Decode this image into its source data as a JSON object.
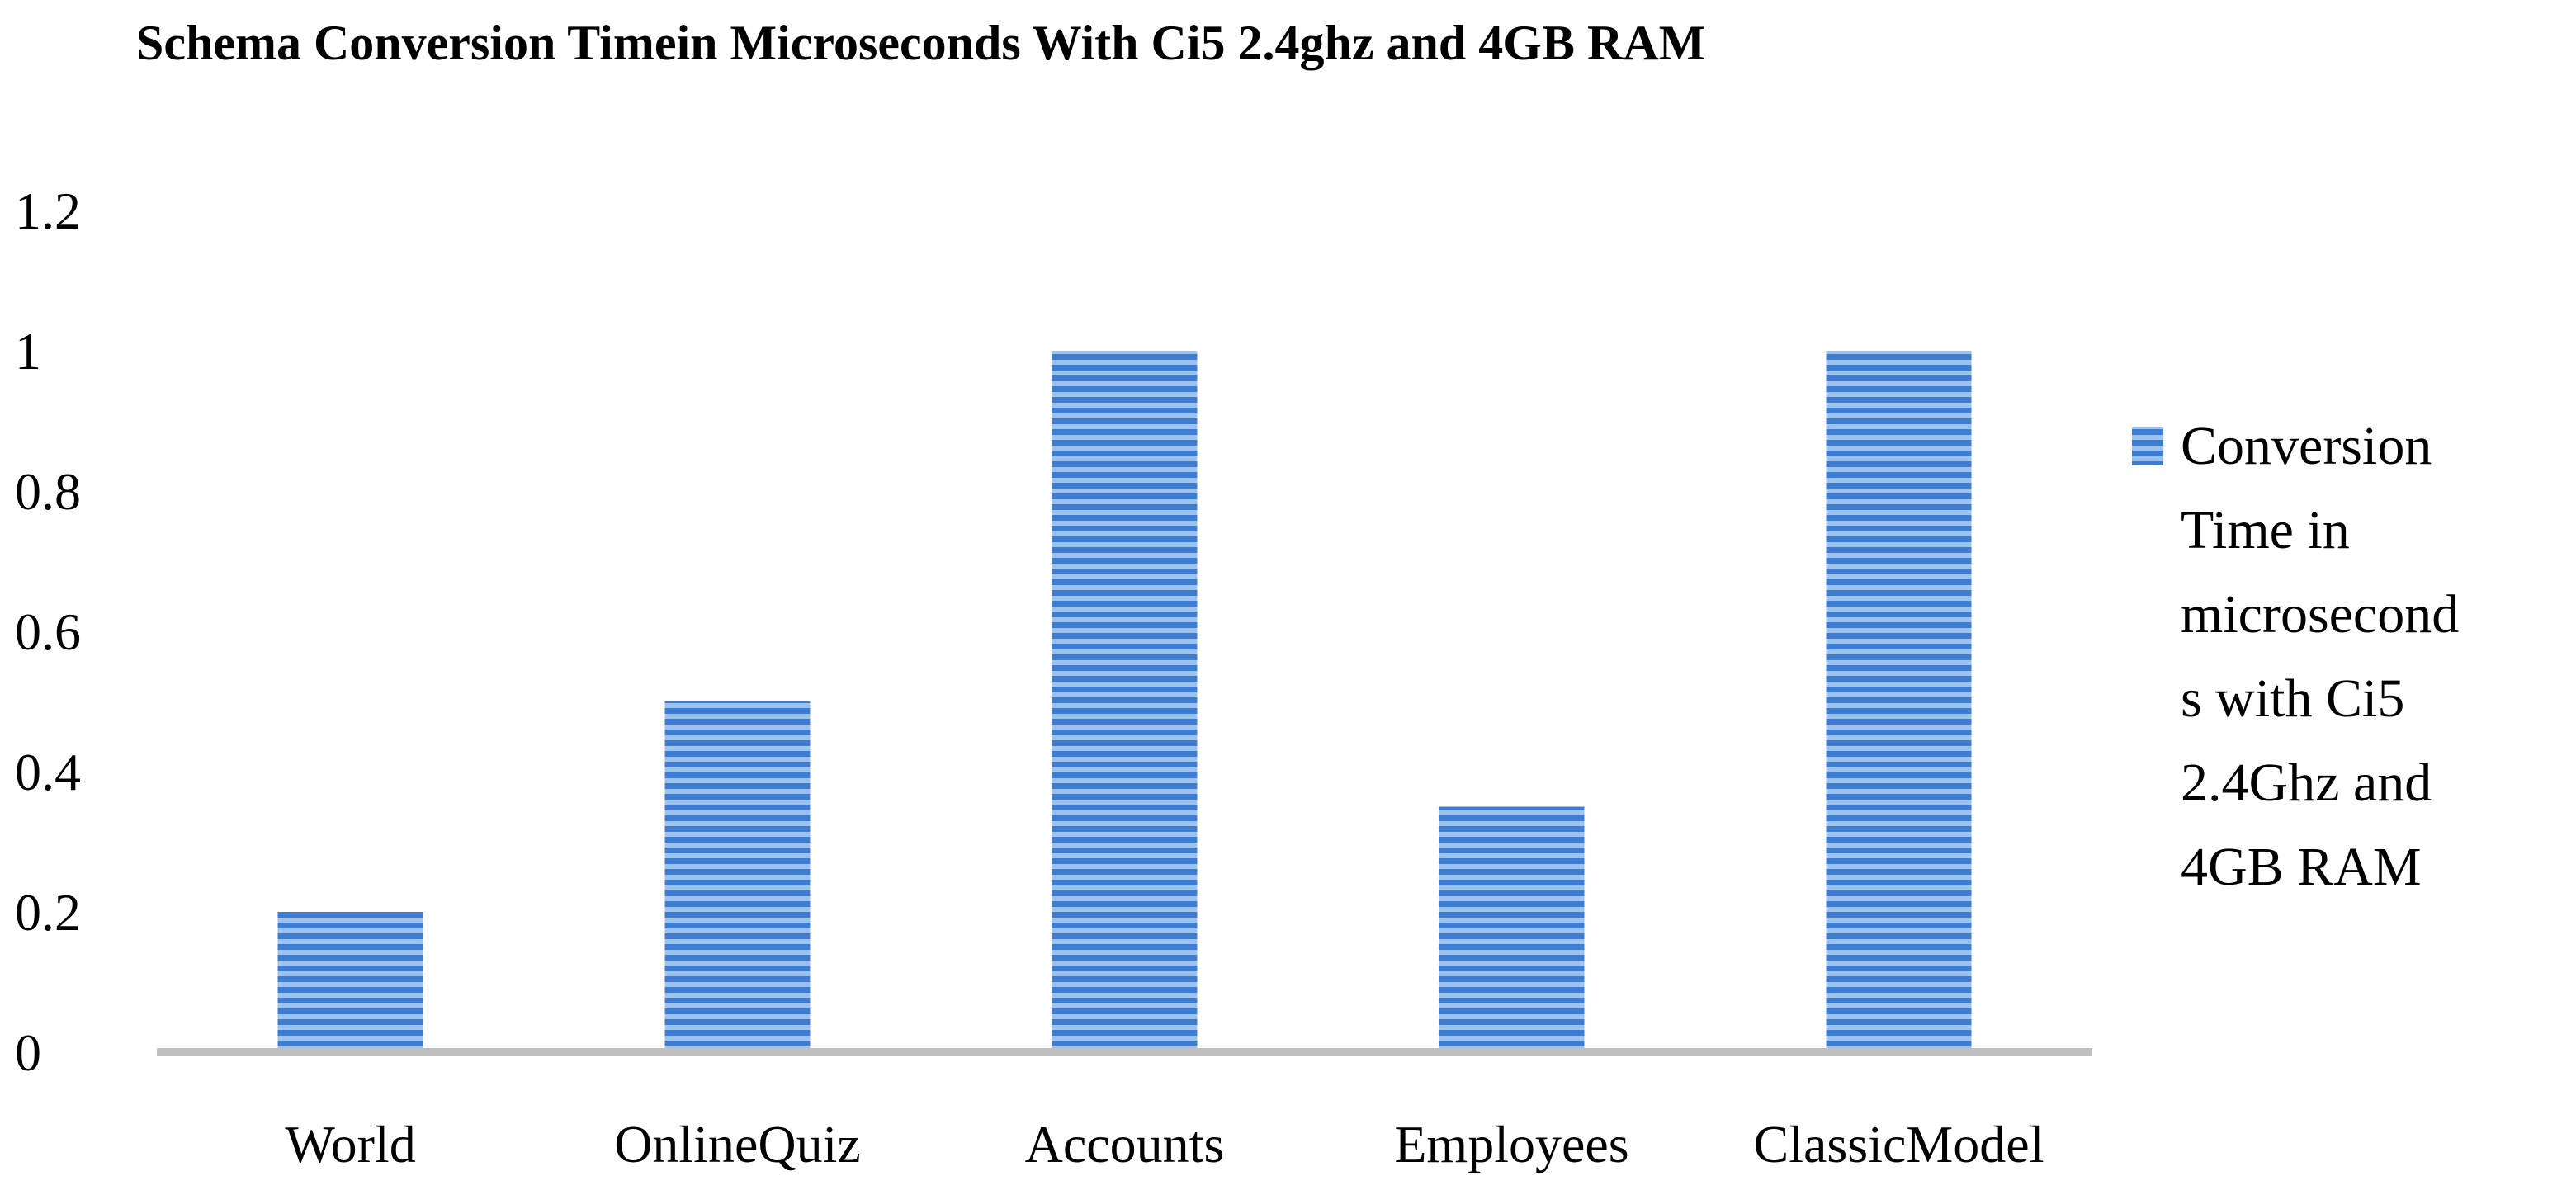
{
  "chart_data": {
    "type": "bar",
    "title": "Schema Conversion Timein Microseconds With Ci5 2.4ghz and 4GB RAM",
    "categories": [
      "World",
      "OnlineQuiz",
      "Accounts",
      "Employees",
      "ClassicModel"
    ],
    "series": [
      {
        "name": "Conversion Time in microseconds with Ci5 2.4Ghz and 4GB RAM",
        "values": [
          0.2,
          0.5,
          1.0,
          0.35,
          1.0
        ],
        "color": "#4a86d4"
      }
    ],
    "legend_lines": [
      "Conversion",
      "Time in",
      "microsecond",
      "s with Ci5",
      "2.4Ghz and",
      "4GB RAM"
    ],
    "y_ticks": [
      "0",
      "0.2",
      "0.4",
      "0.6",
      "0.8",
      "1",
      "1.2"
    ],
    "ylim": [
      0,
      1.2
    ],
    "grid": false,
    "legend_position": "right",
    "axis_color": "#bfbfbf"
  }
}
